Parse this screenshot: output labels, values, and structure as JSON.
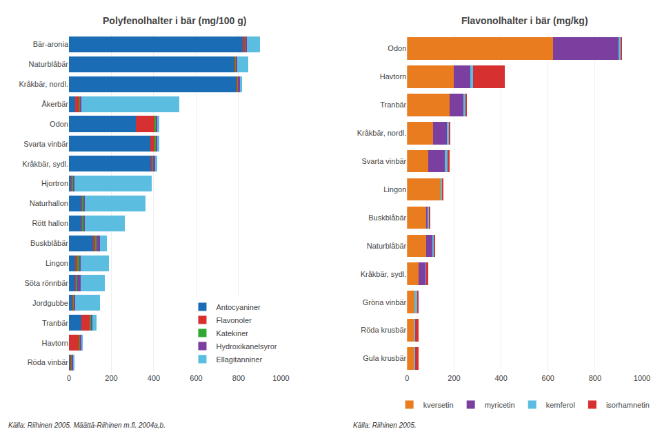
{
  "chart_data": [
    {
      "type": "bar",
      "orientation": "horizontal",
      "stacked": true,
      "title": "Polyfenolhalter i bär (mg/100 g)",
      "categories": [
        "Bär-aronia",
        "Naturblåbär",
        "Kråkbär, nordl.",
        "Åkerbär",
        "Odon",
        "Svarta vinbär",
        "Kråkbär, sydl.",
        "Hjortron",
        "Naturhallon",
        "Rött hallon",
        "Buskblåbär",
        "Lingon",
        "Söta rönnbär",
        "Jordgubbe",
        "Tranbär",
        "Havtorn",
        "Röda vinbär"
      ],
      "series": [
        {
          "name": "Antocyaniner",
          "color": "#1a6db5",
          "values": [
            820,
            780,
            790,
            30,
            315,
            385,
            390,
            10,
            60,
            60,
            115,
            30,
            30,
            15,
            60,
            0,
            5
          ]
        },
        {
          "name": "Flavonoler",
          "color": "#d63030",
          "values": [
            10,
            5,
            5,
            20,
            90,
            20,
            5,
            5,
            5,
            5,
            10,
            10,
            5,
            5,
            40,
            50,
            5
          ]
        },
        {
          "name": "Katekiner",
          "color": "#2ea82e",
          "values": [
            5,
            5,
            5,
            5,
            5,
            5,
            5,
            5,
            5,
            5,
            5,
            10,
            5,
            5,
            5,
            5,
            5
          ]
        },
        {
          "name": "Hydroxikanelsyror",
          "color": "#7b3fa0",
          "values": [
            5,
            5,
            5,
            5,
            5,
            5,
            5,
            5,
            5,
            5,
            15,
            5,
            15,
            5,
            5,
            5,
            5
          ]
        },
        {
          "name": "Ellagitanniner",
          "color": "#5bbde0",
          "values": [
            60,
            50,
            10,
            460,
            10,
            10,
            10,
            365,
            285,
            190,
            35,
            135,
            115,
            115,
            20,
            5,
            5
          ]
        }
      ],
      "xlim": [
        0,
        1000
      ],
      "xticks": [
        0,
        200,
        400,
        600,
        800,
        1000
      ],
      "grid": true,
      "legend": "lower right",
      "annotations": [
        "Källa: Riihinen 2005. Määttä-Riihinen m.fl. 2004a,b."
      ]
    },
    {
      "type": "bar",
      "orientation": "horizontal",
      "stacked": true,
      "title": "Flavonolhalter i bär (mg/kg)",
      "categories": [
        "Odon",
        "Havtorn",
        "Tranbär",
        "Kråkbär, nordl.",
        "Svarta vinbär",
        "Lingon",
        "Buskblåbär",
        "Naturblåbär",
        "Kråkbär, sydl.",
        "Gröna vinbär",
        "Röda krusbär",
        "Gula krusbär"
      ],
      "series": [
        {
          "name": "kversetin",
          "color": "#e87c1e",
          "values": [
            620,
            200,
            180,
            110,
            90,
            145,
            80,
            80,
            50,
            30,
            30,
            30
          ]
        },
        {
          "name": "myricetin",
          "color": "#7b3fa0",
          "values": [
            280,
            70,
            60,
            60,
            70,
            0,
            10,
            30,
            30,
            0,
            0,
            0
          ]
        },
        {
          "name": "kemferol",
          "color": "#5bbde0",
          "values": [
            10,
            10,
            10,
            10,
            15,
            5,
            5,
            5,
            5,
            15,
            5,
            5
          ]
        },
        {
          "name": "isorhamnetin",
          "color": "#d63030",
          "values": [
            5,
            135,
            5,
            5,
            5,
            5,
            5,
            5,
            5,
            5,
            15,
            15
          ]
        }
      ],
      "xlim": [
        0,
        1000
      ],
      "xticks": [
        0,
        200,
        400,
        600,
        800,
        1000
      ],
      "grid": true,
      "legend": "bottom",
      "annotations": [
        "Källa: Riihinen 2005."
      ]
    }
  ]
}
